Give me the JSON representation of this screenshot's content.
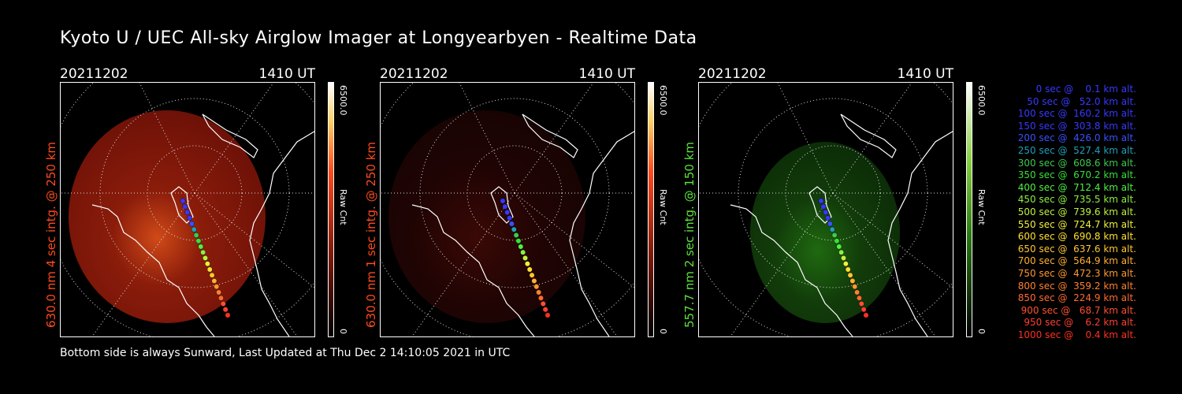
{
  "title": "Kyoto U / UEC All-sky Airglow Imager at Longyearbyen - Realtime Data",
  "panels": [
    {
      "date": "20211202",
      "time": "1410 UT",
      "label": "630.0 nm 4 sec intg. @ 250 km",
      "label_color": "#ff4a1c",
      "colorbar_max": "6500.0",
      "colorbar_min": "0",
      "colorbar_unit": "Raw Cnt",
      "tint": "red",
      "brightness": "bright"
    },
    {
      "date": "20211202",
      "time": "1410 UT",
      "label": "630.0 nm 1 sec intg. @ 250 km",
      "label_color": "#ff4a1c",
      "colorbar_max": "6500.0",
      "colorbar_min": "0",
      "colorbar_unit": "Raw Cnt",
      "tint": "red",
      "brightness": "dim"
    },
    {
      "date": "20211202",
      "time": "1410 UT",
      "label": "557.7 nm 2 sec intg. @ 150 km",
      "label_color": "#5ae23a",
      "colorbar_max": "6500.0",
      "colorbar_min": "0",
      "colorbar_unit": "Raw Cnt",
      "tint": "green",
      "brightness": "medium"
    }
  ],
  "legend": [
    {
      "text": "   0 sec @    0.1 km alt.",
      "color": "#3838ff"
    },
    {
      "text": "  50 sec @   52.0 km alt.",
      "color": "#3838ff"
    },
    {
      "text": " 100 sec @  160.2 km alt.",
      "color": "#3838ff"
    },
    {
      "text": " 150 sec @  303.8 km alt.",
      "color": "#3838ff"
    },
    {
      "text": " 200 sec @  426.0 km alt.",
      "color": "#3852ff"
    },
    {
      "text": " 250 sec @  527.4 km alt.",
      "color": "#20a0b8"
    },
    {
      "text": " 300 sec @  608.6 km alt.",
      "color": "#3ec850"
    },
    {
      "text": " 350 sec @  670.2 km alt.",
      "color": "#38e038"
    },
    {
      "text": " 400 sec @  712.4 km alt.",
      "color": "#50f040"
    },
    {
      "text": " 450 sec @  735.5 km alt.",
      "color": "#8cf040"
    },
    {
      "text": " 500 sec @  739.6 km alt.",
      "color": "#c0f040"
    },
    {
      "text": " 550 sec @  724.7 km alt.",
      "color": "#f0f040"
    },
    {
      "text": " 600 sec @  690.8 km alt.",
      "color": "#ffe030"
    },
    {
      "text": " 650 sec @  637.6 km alt.",
      "color": "#ffc830"
    },
    {
      "text": " 700 sec @  564.9 km alt.",
      "color": "#ffb030"
    },
    {
      "text": " 750 sec @  472.3 km alt.",
      "color": "#ff9830"
    },
    {
      "text": " 800 sec @  359.2 km alt.",
      "color": "#ff8030"
    },
    {
      "text": " 850 sec @  224.9 km alt.",
      "color": "#ff6a30"
    },
    {
      "text": " 900 sec @   68.7 km alt.",
      "color": "#ff5030"
    },
    {
      "text": " 950 sec @    6.2 km alt.",
      "color": "#ff4030"
    },
    {
      "text": "1000 sec @    0.4 km alt.",
      "color": "#ff3020"
    }
  ],
  "footer": "Bottom side is always Sunward, Last Updated at Thu Dec  2 14:10:05 2021 in UTC"
}
